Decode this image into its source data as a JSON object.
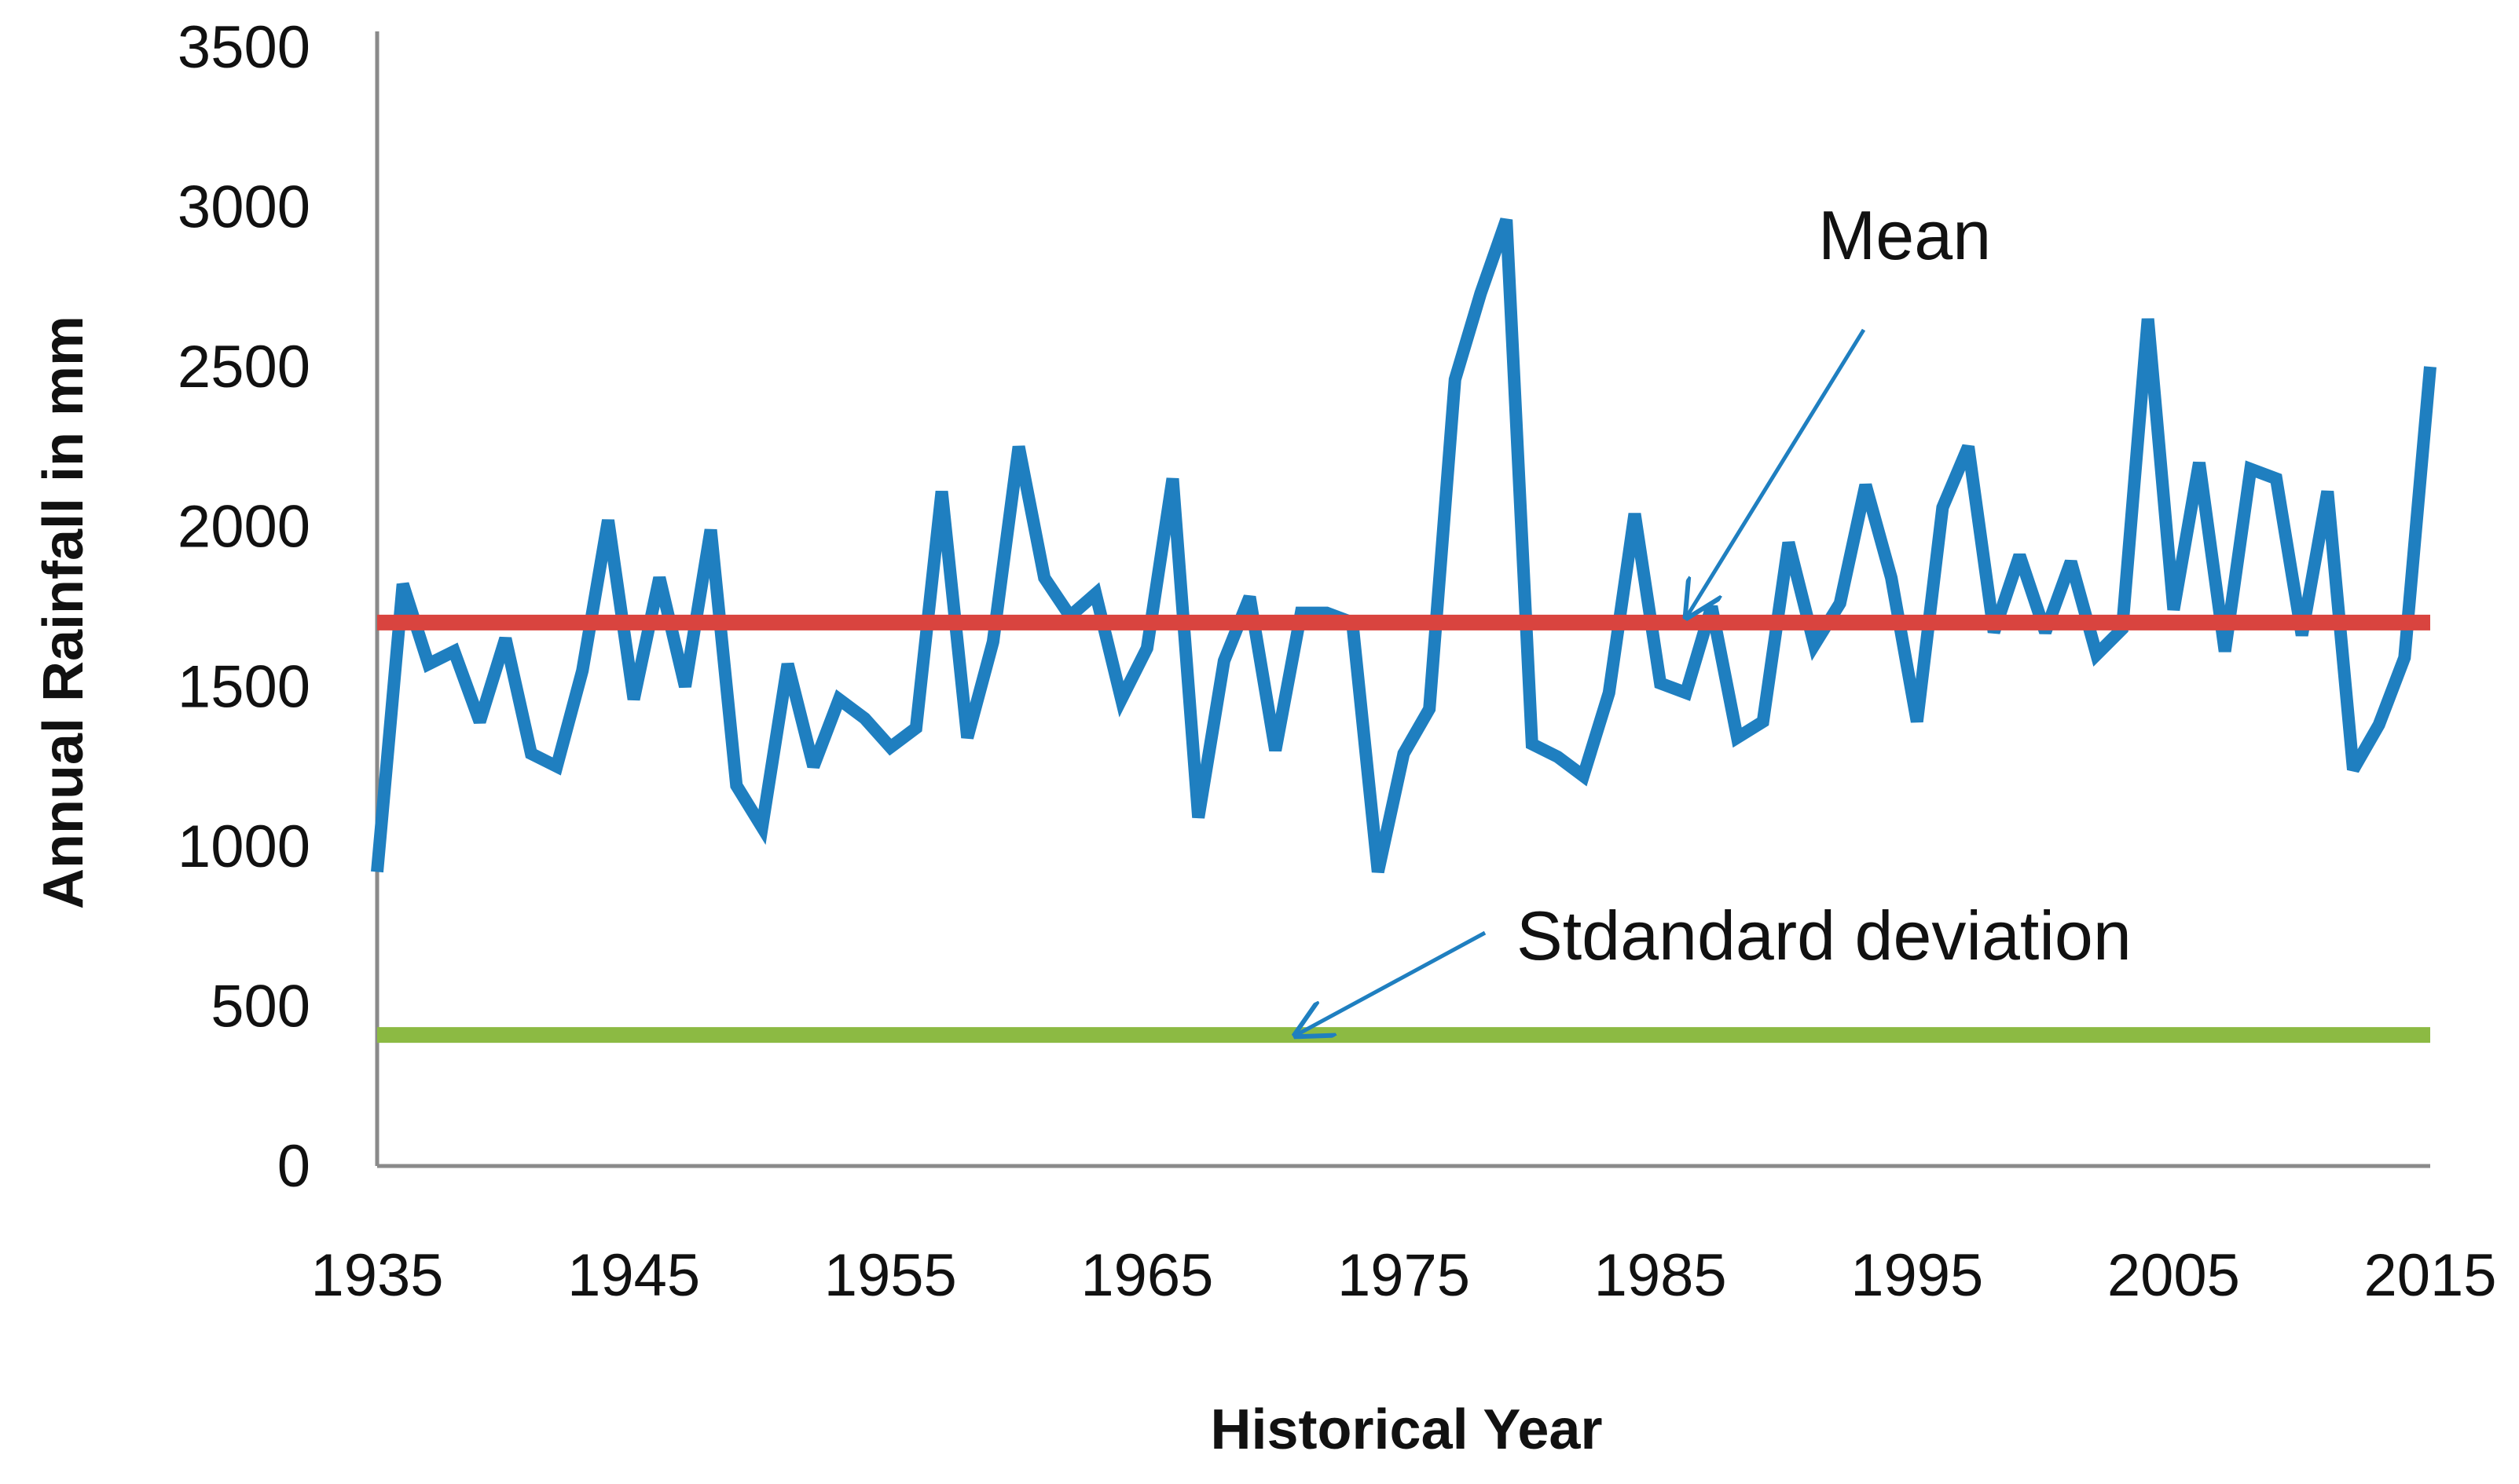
{
  "chart_data": {
    "type": "line",
    "title": "",
    "xlabel": "Historical Year",
    "ylabel": "Annual Rainfall  in mm",
    "xlim": [
      1935,
      2015
    ],
    "ylim": [
      0,
      3500
    ],
    "x_ticks": [
      1935,
      1945,
      1955,
      1965,
      1975,
      1985,
      1995,
      2005,
      2015
    ],
    "y_ticks": [
      0,
      500,
      1000,
      1500,
      2000,
      2500,
      3000,
      3500
    ],
    "grid": false,
    "series": [
      {
        "name": "Annual Rainfall",
        "color": "#1F7FC0",
        "x": [
          1935,
          1936,
          1937,
          1938,
          1939,
          1940,
          1941,
          1942,
          1943,
          1944,
          1945,
          1946,
          1947,
          1948,
          1949,
          1950,
          1951,
          1952,
          1953,
          1954,
          1955,
          1956,
          1957,
          1958,
          1959,
          1960,
          1961,
          1962,
          1963,
          1964,
          1965,
          1966,
          1967,
          1968,
          1969,
          1970,
          1971,
          1972,
          1973,
          1974,
          1975,
          1976,
          1977,
          1978,
          1979,
          1980,
          1981,
          1982,
          1983,
          1984,
          1985,
          1986,
          1987,
          1988,
          1989,
          1990,
          1991,
          1992,
          1993,
          1994,
          1995,
          1996,
          1997,
          1998,
          1999,
          2000,
          2001,
          2002,
          2003,
          2004,
          2005,
          2006,
          2007,
          2008,
          2009,
          2010,
          2011,
          2012,
          2013,
          2014,
          2015
        ],
        "values": [
          920,
          1820,
          1570,
          1610,
          1390,
          1650,
          1290,
          1250,
          1550,
          2020,
          1460,
          1840,
          1500,
          1990,
          1190,
          1060,
          1570,
          1250,
          1460,
          1400,
          1310,
          1370,
          2110,
          1340,
          1640,
          2250,
          1840,
          1720,
          1790,
          1460,
          1620,
          2150,
          1090,
          1580,
          1780,
          1300,
          1730,
          1730,
          1700,
          920,
          1290,
          1430,
          2460,
          2730,
          2960,
          1320,
          1280,
          1220,
          1480,
          2040,
          1510,
          1480,
          1750,
          1340,
          1390,
          1950,
          1630,
          1760,
          2130,
          1840,
          1390,
          2060,
          2250,
          1670,
          1910,
          1670,
          1890,
          1600,
          1680,
          2650,
          1740,
          2200,
          1610,
          2180,
          2150,
          1660,
          2110,
          1240,
          1380,
          1590,
          2500
        ]
      },
      {
        "name": "Mean",
        "color": "#D9443F",
        "x": [
          1935,
          2015
        ],
        "values": [
          1700,
          1700
        ]
      },
      {
        "name": "Stdandard deviation",
        "color": "#8CBA43",
        "x": [
          1935,
          2015
        ],
        "values": [
          410,
          410
        ]
      }
    ],
    "annotations": [
      {
        "text": "Mean",
        "target_series": "Mean"
      },
      {
        "text": "Stdandard deviation",
        "target_series": "Stdandard deviation"
      }
    ]
  }
}
